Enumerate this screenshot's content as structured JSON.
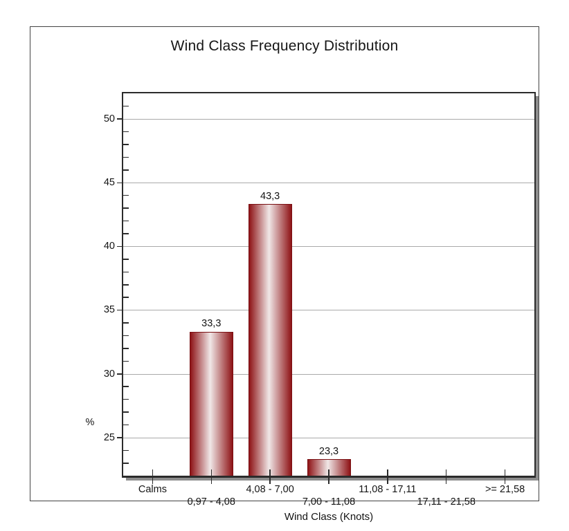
{
  "chart_data": {
    "type": "bar",
    "title": "Wind Class Frequency Distribution",
    "xlabel": "Wind Class (Knots)",
    "ylabel": "%",
    "categories": [
      "Calms",
      "0,97 - 4,08",
      "4,08 - 7,00",
      "7,00 - 11,08",
      "11,08 - 17,11",
      "17,11 - 21,58",
      ">= 21,58"
    ],
    "values": [
      0,
      33.3,
      43.3,
      23.3,
      0,
      0,
      0
    ],
    "value_labels": [
      "",
      "33,3",
      "43,3",
      "23,3",
      "",
      "",
      ""
    ],
    "y_ticks": [
      25,
      30,
      35,
      40,
      45,
      50
    ],
    "y_minor_step": 1,
    "ylim": [
      22,
      52
    ],
    "grid": "horizontal-major-only",
    "legend": "none",
    "colors": {
      "bar_edge": "#8e1316",
      "bar_highlight": "#f0e7e7",
      "bar_border": "#7a1013",
      "gridline": "#a9a9a9",
      "axis": "#2b2b2b",
      "shadow": "#8d8d8d",
      "text": "#141414",
      "frame_border": "#424242",
      "background": "#ffffff"
    }
  }
}
